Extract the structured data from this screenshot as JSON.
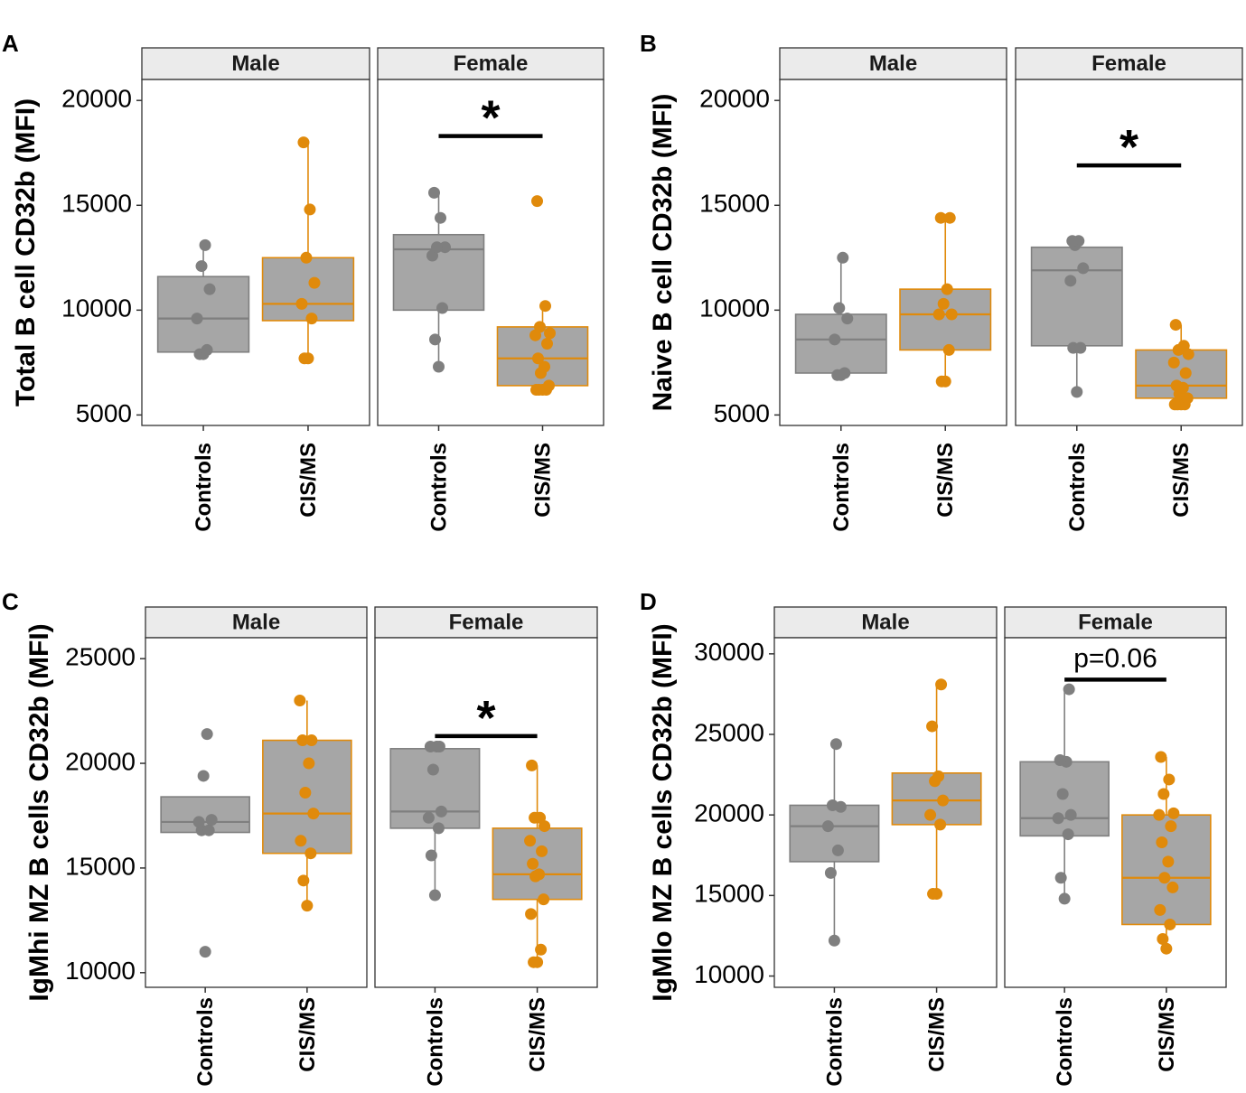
{
  "colors": {
    "controls": "#7f7f7f",
    "cis_ms": "#e08a0b",
    "box_fill": "#a6a6a6",
    "strip_fill": "#ebebeb"
  },
  "chart_data": [
    {
      "type": "box",
      "panel_label": "A",
      "ylabel": "Total B cell CD32b (MFI)",
      "ylim": [
        4500,
        21000
      ],
      "yticks": [
        5000,
        10000,
        15000,
        20000
      ],
      "facets": [
        {
          "label": "Male",
          "categories": [
            "Controls",
            "CIS/MS"
          ],
          "groups": [
            {
              "name": "Controls",
              "q1": 8000,
              "median": 9600,
              "q3": 11600,
              "whisker_low": 7900,
              "whisker_high": 13100,
              "points": [
                7900,
                7900,
                8100,
                9600,
                11000,
                12100,
                13100
              ]
            },
            {
              "name": "CIS/MS",
              "q1": 9500,
              "median": 10300,
              "q3": 12500,
              "whisker_low": 7700,
              "whisker_high": 18000,
              "points": [
                7700,
                7700,
                9600,
                10300,
                11300,
                12500,
                14800,
                18000
              ]
            }
          ],
          "significance": null
        },
        {
          "label": "Female",
          "categories": [
            "Controls",
            "CIS/MS"
          ],
          "groups": [
            {
              "name": "Controls",
              "q1": 10000,
              "median": 12900,
              "q3": 13600,
              "whisker_low": 7300,
              "whisker_high": 15600,
              "points": [
                7300,
                8600,
                10100,
                12600,
                13000,
                13000,
                14400,
                15600
              ]
            },
            {
              "name": "CIS/MS",
              "q1": 6400,
              "median": 7700,
              "q3": 9200,
              "whisker_low": 6200,
              "whisker_high": 10200,
              "points": [
                6200,
                6200,
                6200,
                6200,
                6400,
                7000,
                7300,
                7700,
                8400,
                8800,
                8900,
                9200,
                10200,
                15200
              ]
            }
          ],
          "significance": {
            "label": "*",
            "y": 18300
          }
        }
      ]
    },
    {
      "type": "box",
      "panel_label": "B",
      "ylabel": "Naive B cell CD32b (MFI)",
      "ylim": [
        4500,
        21000
      ],
      "yticks": [
        5000,
        10000,
        15000,
        20000
      ],
      "facets": [
        {
          "label": "Male",
          "categories": [
            "Controls",
            "CIS/MS"
          ],
          "groups": [
            {
              "name": "Controls",
              "q1": 7000,
              "median": 8600,
              "q3": 9800,
              "whisker_low": 6900,
              "whisker_high": 12500,
              "points": [
                6900,
                6900,
                7000,
                8600,
                9600,
                10100,
                12500
              ]
            },
            {
              "name": "CIS/MS",
              "q1": 8100,
              "median": 9800,
              "q3": 11000,
              "whisker_low": 6600,
              "whisker_high": 14400,
              "points": [
                6600,
                6600,
                8100,
                9800,
                9800,
                10300,
                11000,
                14400,
                14400
              ]
            }
          ],
          "significance": null
        },
        {
          "label": "Female",
          "categories": [
            "Controls",
            "CIS/MS"
          ],
          "groups": [
            {
              "name": "Controls",
              "q1": 8300,
              "median": 11900,
              "q3": 13000,
              "whisker_low": 6100,
              "whisker_high": 13300,
              "points": [
                6100,
                8200,
                8200,
                11400,
                12000,
                13100,
                13300,
                13300
              ]
            },
            {
              "name": "CIS/MS",
              "q1": 5800,
              "median": 6400,
              "q3": 8100,
              "whisker_low": 5500,
              "whisker_high": 9300,
              "points": [
                5500,
                5500,
                5500,
                5500,
                5800,
                6000,
                6300,
                6400,
                7000,
                7500,
                7900,
                8100,
                8300,
                9300
              ]
            }
          ],
          "significance": {
            "label": "*",
            "y": 16900
          }
        }
      ]
    },
    {
      "type": "box",
      "panel_label": "C",
      "ylabel": "IgMhi MZ B cells CD32b (MFI)",
      "ylim": [
        9300,
        26000
      ],
      "yticks": [
        10000,
        15000,
        20000,
        25000
      ],
      "facets": [
        {
          "label": "Male",
          "categories": [
            "Controls",
            "CIS/MS"
          ],
          "groups": [
            {
              "name": "Controls",
              "q1": 16700,
              "median": 17200,
              "q3": 18400,
              "whisker_low": 16700,
              "whisker_high": 18400,
              "points": [
                11000,
                16800,
                16800,
                17200,
                17300,
                19400,
                21400
              ]
            },
            {
              "name": "CIS/MS",
              "q1": 15700,
              "median": 17600,
              "q3": 21100,
              "whisker_low": 13200,
              "whisker_high": 23000,
              "points": [
                13200,
                14400,
                15700,
                16300,
                17600,
                18600,
                20000,
                21100,
                21100,
                23000
              ]
            }
          ],
          "significance": null
        },
        {
          "label": "Female",
          "categories": [
            "Controls",
            "CIS/MS"
          ],
          "groups": [
            {
              "name": "Controls",
              "q1": 16900,
              "median": 17700,
              "q3": 20700,
              "whisker_low": 13700,
              "whisker_high": 20700,
              "points": [
                13700,
                15600,
                16900,
                17400,
                17700,
                19700,
                20800,
                20800,
                20800
              ]
            },
            {
              "name": "CIS/MS",
              "q1": 13500,
              "median": 14700,
              "q3": 16900,
              "whisker_low": 10500,
              "whisker_high": 19900,
              "points": [
                10500,
                10500,
                11100,
                12800,
                13500,
                14600,
                14700,
                15200,
                15800,
                16300,
                17000,
                17400,
                17400,
                19900
              ]
            }
          ],
          "significance": {
            "label": "*",
            "y": 21300
          }
        }
      ]
    },
    {
      "type": "box",
      "panel_label": "D",
      "ylabel": "IgMlo MZ B cells CD32b (MFI)",
      "ylim": [
        9300,
        31000
      ],
      "yticks": [
        10000,
        15000,
        20000,
        25000,
        30000
      ],
      "facets": [
        {
          "label": "Male",
          "categories": [
            "Controls",
            "CIS/MS"
          ],
          "groups": [
            {
              "name": "Controls",
              "q1": 17100,
              "median": 19300,
              "q3": 20600,
              "whisker_low": 12200,
              "whisker_high": 24400,
              "points": [
                12200,
                16400,
                17800,
                19300,
                20500,
                20600,
                24400
              ]
            },
            {
              "name": "CIS/MS",
              "q1": 19400,
              "median": 20900,
              "q3": 22600,
              "whisker_low": 15100,
              "whisker_high": 28100,
              "points": [
                15100,
                15100,
                19400,
                20000,
                20900,
                22100,
                22400,
                25500,
                28100
              ]
            }
          ],
          "significance": null
        },
        {
          "label": "Female",
          "categories": [
            "Controls",
            "CIS/MS"
          ],
          "groups": [
            {
              "name": "Controls",
              "q1": 18700,
              "median": 19800,
              "q3": 23300,
              "whisker_low": 14800,
              "whisker_high": 27800,
              "points": [
                14800,
                16100,
                18800,
                19800,
                20000,
                21300,
                23300,
                23400,
                27800
              ]
            },
            {
              "name": "CIS/MS",
              "q1": 13200,
              "median": 16100,
              "q3": 20000,
              "whisker_low": 11700,
              "whisker_high": 23600,
              "points": [
                11700,
                12300,
                13200,
                14100,
                15500,
                16100,
                17100,
                18300,
                19300,
                20000,
                20100,
                21300,
                22200,
                23600
              ]
            }
          ],
          "significance": {
            "label": "p=0.06",
            "y": 28400
          }
        }
      ]
    }
  ]
}
